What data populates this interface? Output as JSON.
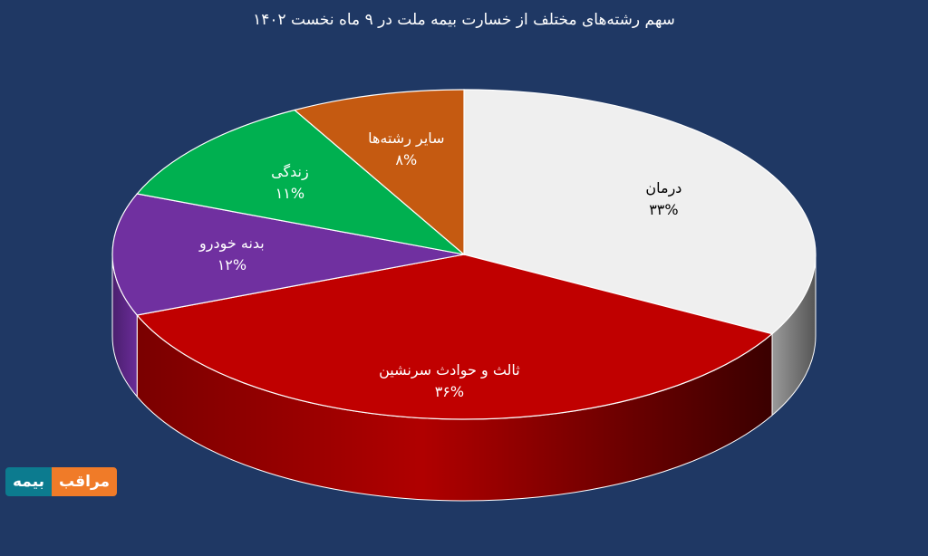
{
  "chart_data": {
    "type": "pie",
    "title": "سهم رشته‌های مختلف از خسارت بیمه ملت در ۹ ماه نخست ۱۴۰۲",
    "categories": [
      "درمان",
      "ثالث و حوادث سرنشین",
      "بدنه خودرو",
      "زندگی",
      "سایر رشته‌ها"
    ],
    "values": [
      33,
      36,
      12,
      11,
      8
    ],
    "labels": [
      "۳۳%",
      "۳۶%",
      "۱۲%",
      "۱۱%",
      "۸%"
    ],
    "colors": [
      "#efefef",
      "#c00000",
      "#7030a0",
      "#00b050",
      "#c55a11"
    ],
    "label_colors": [
      "#000000",
      "#ffffff",
      "#ffffff",
      "#ffffff",
      "#ffffff"
    ],
    "style": "3d-exploded-none",
    "legend": "none"
  },
  "logo": {
    "left_text": "بیمه",
    "right_text": "مراقب"
  }
}
